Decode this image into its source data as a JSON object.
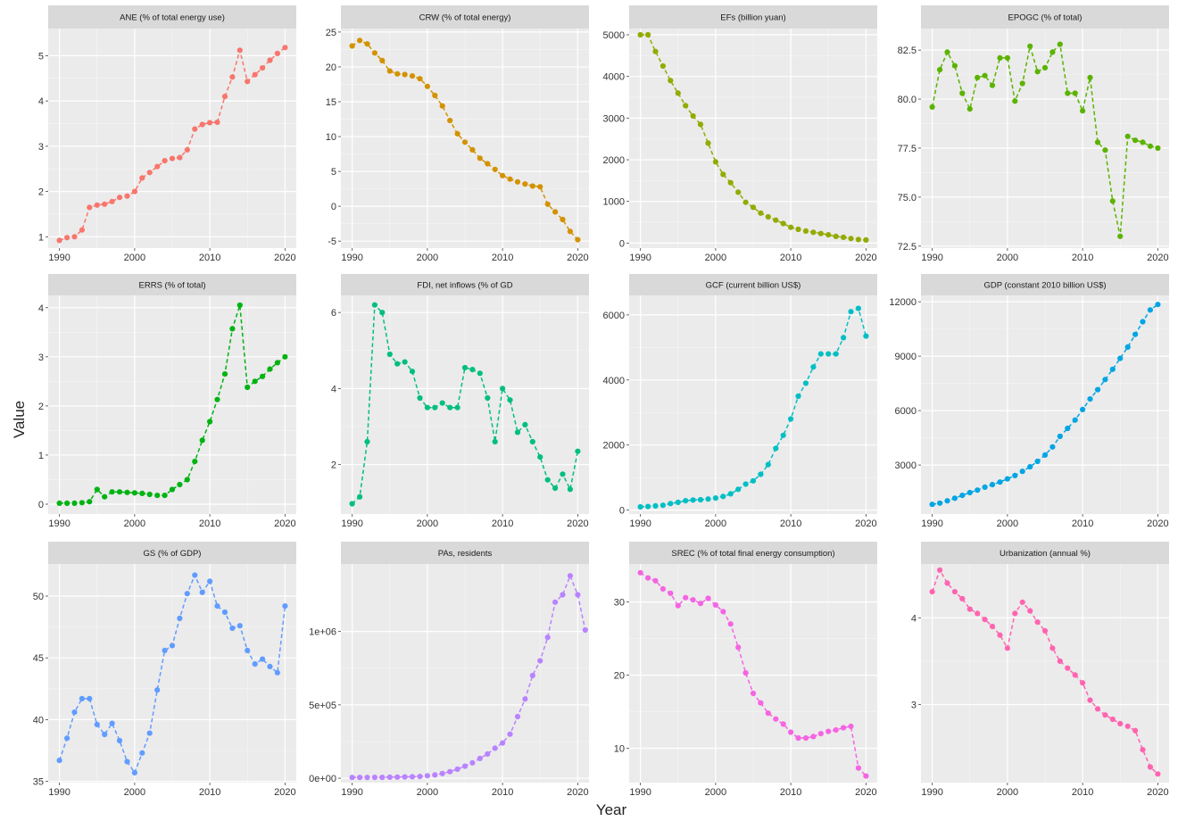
{
  "figure": {
    "xlabel": "Year",
    "ylabel": "Value"
  },
  "chart_data": [
    {
      "type": "line",
      "title": "ANE  (% of total energy use)",
      "color": "#F8766D",
      "x_start": 1990,
      "xlim": [
        1988.5,
        2021.5
      ],
      "ylim": [
        0.75,
        5.6
      ],
      "xticks": [
        1990,
        2000,
        2010,
        2020
      ],
      "yticks": [
        1,
        2,
        3,
        4,
        5
      ],
      "ytick_labels": [
        "1",
        "2",
        "3",
        "4",
        "5"
      ],
      "grid": true,
      "values": [
        0.92,
        0.98,
        1.0,
        1.15,
        1.65,
        1.7,
        1.72,
        1.78,
        1.87,
        1.9,
        2.0,
        2.3,
        2.42,
        2.55,
        2.68,
        2.73,
        2.75,
        2.92,
        3.38,
        3.48,
        3.52,
        3.53,
        4.1,
        4.53,
        5.12,
        4.43,
        4.58,
        4.73,
        4.9,
        5.05,
        5.18
      ]
    },
    {
      "type": "line",
      "title": "CRW (% of total energy)",
      "color": "#D39200",
      "x_start": 1990,
      "xlim": [
        1988.5,
        2021.5
      ],
      "ylim": [
        -6,
        25.5
      ],
      "xticks": [
        1990,
        2000,
        2010,
        2020
      ],
      "yticks": [
        -5,
        0,
        5,
        10,
        15,
        20,
        25
      ],
      "ytick_labels": [
        "-5",
        "0",
        "5",
        "10",
        "15",
        "20",
        "25"
      ],
      "grid": true,
      "values": [
        23.0,
        23.8,
        23.3,
        22.0,
        20.9,
        19.4,
        19.0,
        18.9,
        18.7,
        18.3,
        17.2,
        15.9,
        14.4,
        12.3,
        10.4,
        9.2,
        8.1,
        6.9,
        6.1,
        5.3,
        4.4,
        3.9,
        3.5,
        3.2,
        2.9,
        2.8,
        0.3,
        -0.8,
        -1.9,
        -3.6,
        -4.8
      ]
    },
    {
      "type": "line",
      "title": "EFs (billion yuan)",
      "color": "#93AA00",
      "x_start": 1990,
      "xlim": [
        1988.5,
        2021.5
      ],
      "ylim": [
        -120,
        5150
      ],
      "xticks": [
        1990,
        2000,
        2010,
        2020
      ],
      "yticks": [
        0,
        1000,
        2000,
        3000,
        4000,
        5000
      ],
      "ytick_labels": [
        "0",
        "1000",
        "2000",
        "3000",
        "4000",
        "5000"
      ],
      "grid": true,
      "values": [
        5000,
        5000,
        4600,
        4250,
        3900,
        3600,
        3300,
        3050,
        2850,
        2400,
        1950,
        1650,
        1450,
        1220,
        980,
        860,
        720,
        630,
        550,
        470,
        380,
        330,
        290,
        260,
        230,
        200,
        160,
        140,
        110,
        85,
        75
      ]
    },
    {
      "type": "line",
      "title": "EPOGC (% of total)",
      "color": "#5BB300",
      "x_start": 1990,
      "xlim": [
        1988.5,
        2021.5
      ],
      "ylim": [
        72.4,
        83.6
      ],
      "xticks": [
        1990,
        2000,
        2010,
        2020
      ],
      "yticks": [
        72.5,
        75.0,
        77.5,
        80.0,
        82.5
      ],
      "ytick_labels": [
        "72.5",
        "75.0",
        "77.5",
        "80.0",
        "82.5"
      ],
      "grid": true,
      "values": [
        79.6,
        81.5,
        82.4,
        81.7,
        80.3,
        79.5,
        81.1,
        81.2,
        80.7,
        82.1,
        82.1,
        79.9,
        80.8,
        82.7,
        81.4,
        81.6,
        82.4,
        82.8,
        80.3,
        80.3,
        79.4,
        81.1,
        77.8,
        77.4,
        74.8,
        73.0,
        78.1,
        77.9,
        77.8,
        77.6,
        77.5
      ]
    },
    {
      "type": "line",
      "title": "ERRS (% of total)",
      "color": "#00B312",
      "x_start": 1990,
      "xlim": [
        1988.5,
        2021.5
      ],
      "ylim": [
        -0.2,
        4.25
      ],
      "xticks": [
        1990,
        2000,
        2010,
        2020
      ],
      "yticks": [
        0,
        1,
        2,
        3,
        4
      ],
      "ytick_labels": [
        "0",
        "1",
        "2",
        "3",
        "4"
      ],
      "grid": true,
      "values": [
        0.02,
        0.02,
        0.02,
        0.03,
        0.05,
        0.3,
        0.15,
        0.25,
        0.25,
        0.24,
        0.23,
        0.22,
        0.2,
        0.18,
        0.18,
        0.3,
        0.4,
        0.5,
        0.87,
        1.3,
        1.68,
        2.13,
        2.65,
        3.57,
        4.05,
        2.38,
        2.5,
        2.6,
        2.75,
        2.88,
        3.0
      ]
    },
    {
      "type": "line",
      "title": "FDI, net inflows (% of GD",
      "color": "#00BF7D",
      "x_start": 1990,
      "xlim": [
        1988.5,
        2021.5
      ],
      "ylim": [
        0.7,
        6.45
      ],
      "xticks": [
        1990,
        2000,
        2010,
        2020
      ],
      "yticks": [
        2,
        4,
        6
      ],
      "ytick_labels": [
        "2",
        "4",
        "6"
      ],
      "grid": true,
      "values": [
        0.97,
        1.15,
        2.6,
        6.2,
        6.0,
        4.9,
        4.65,
        4.7,
        4.45,
        3.75,
        3.5,
        3.5,
        3.62,
        3.5,
        3.5,
        4.55,
        4.5,
        4.4,
        3.75,
        2.6,
        4.0,
        3.7,
        2.85,
        3.05,
        2.6,
        2.2,
        1.6,
        1.38,
        1.75,
        1.35,
        2.35
      ]
    },
    {
      "type": "line",
      "title": "GCF (current billion US$)",
      "color": "#00BFC4",
      "x_start": 1990,
      "xlim": [
        1988.5,
        2021.5
      ],
      "ylim": [
        -120,
        6600
      ],
      "xticks": [
        1990,
        2000,
        2010,
        2020
      ],
      "yticks": [
        0,
        2000,
        4000,
        6000
      ],
      "ytick_labels": [
        "0",
        "2000",
        "4000",
        "6000"
      ],
      "grid": true,
      "values": [
        100,
        110,
        130,
        150,
        200,
        240,
        290,
        310,
        320,
        340,
        370,
        420,
        500,
        640,
        800,
        900,
        1100,
        1400,
        1900,
        2300,
        2800,
        3500,
        3900,
        4400,
        4800,
        4800,
        4800,
        5300,
        6100,
        6200,
        5350
      ]
    },
    {
      "type": "line",
      "title": "GDP (constant 2010 billion US$)",
      "color": "#00A5E3",
      "x_start": 1990,
      "xlim": [
        1988.5,
        2021.5
      ],
      "ylim": [
        300,
        12350
      ],
      "xticks": [
        1990,
        2000,
        2010,
        2020
      ],
      "yticks": [
        3000,
        6000,
        9000,
        12000
      ],
      "ytick_labels": [
        "3000",
        "6000",
        "9000",
        "12000"
      ],
      "grid": true,
      "values": [
        830,
        900,
        1030,
        1170,
        1330,
        1480,
        1620,
        1780,
        1920,
        2060,
        2240,
        2420,
        2650,
        2900,
        3200,
        3550,
        4000,
        4580,
        5020,
        5480,
        6060,
        6640,
        7150,
        7710,
        8280,
        8880,
        9500,
        10200,
        10900,
        11550,
        11850
      ]
    },
    {
      "type": "line",
      "title": "GS (% of GDP)",
      "color": "#619CFF",
      "x_start": 1990,
      "xlim": [
        1988.5,
        2021.5
      ],
      "ylim": [
        34.9,
        52.6
      ],
      "xticks": [
        1990,
        2000,
        2010,
        2020
      ],
      "yticks": [
        35,
        40,
        45,
        50
      ],
      "ytick_labels": [
        "35",
        "40",
        "45",
        "50"
      ],
      "grid": true,
      "values": [
        36.7,
        38.5,
        40.6,
        41.7,
        41.7,
        39.6,
        38.8,
        39.7,
        38.3,
        36.6,
        35.7,
        37.3,
        38.9,
        42.4,
        45.6,
        46.0,
        48.2,
        50.2,
        51.7,
        50.3,
        51.2,
        49.2,
        48.7,
        47.4,
        47.6,
        45.6,
        44.5,
        44.9,
        44.3,
        43.8,
        49.2
      ]
    },
    {
      "type": "line",
      "title": "PAs, residents",
      "color": "#B983FF",
      "x_start": 1990,
      "xlim": [
        1988.5,
        2021.5
      ],
      "ylim": [
        -30000,
        1460000
      ],
      "xticks": [
        1990,
        2000,
        2010,
        2020
      ],
      "yticks": [
        0,
        500000,
        1000000
      ],
      "ytick_labels": [
        "0e+00",
        "5e+05",
        "1e+06"
      ],
      "grid": true,
      "values": [
        5000,
        5000,
        5000,
        6000,
        6000,
        7000,
        8000,
        9000,
        10000,
        12000,
        17000,
        22000,
        32000,
        45000,
        62000,
        82000,
        105000,
        135000,
        165000,
        205000,
        240000,
        300000,
        420000,
        540000,
        700000,
        800000,
        960000,
        1200000,
        1250000,
        1380000,
        1250000,
        1010000
      ]
    },
    {
      "type": "line",
      "title": "SREC  (% of total final energy consumption)",
      "color": "#F564E3",
      "x_start": 1990,
      "xlim": [
        1988.5,
        2021.5
      ],
      "ylim": [
        5.3,
        35.2
      ],
      "xticks": [
        1990,
        2000,
        2010,
        2020
      ],
      "yticks": [
        10,
        20,
        30
      ],
      "ytick_labels": [
        "10",
        "20",
        "30"
      ],
      "grid": true,
      "values": [
        34.0,
        33.3,
        32.9,
        31.8,
        31.2,
        29.5,
        30.6,
        30.3,
        29.8,
        30.5,
        29.6,
        28.7,
        27.0,
        23.8,
        20.3,
        17.5,
        16.2,
        14.8,
        14.0,
        13.3,
        12.2,
        11.4,
        11.4,
        11.6,
        12.0,
        12.3,
        12.5,
        12.8,
        13.0,
        7.3,
        6.2
      ]
    },
    {
      "type": "line",
      "title": "Urbanization (annual %)",
      "color": "#FF64B0",
      "x_start": 1990,
      "xlim": [
        1988.5,
        2021.5
      ],
      "ylim": [
        2.1,
        4.62
      ],
      "xticks": [
        1990,
        2000,
        2010,
        2020
      ],
      "yticks": [
        3,
        4
      ],
      "ytick_labels": [
        "3",
        "4"
      ],
      "grid": true,
      "values": [
        4.3,
        4.55,
        4.4,
        4.3,
        4.22,
        4.1,
        4.05,
        3.98,
        3.9,
        3.8,
        3.65,
        4.05,
        4.18,
        4.08,
        3.95,
        3.85,
        3.65,
        3.5,
        3.42,
        3.34,
        3.25,
        3.05,
        2.95,
        2.88,
        2.83,
        2.78,
        2.75,
        2.7,
        2.48,
        2.28,
        2.2
      ]
    }
  ]
}
